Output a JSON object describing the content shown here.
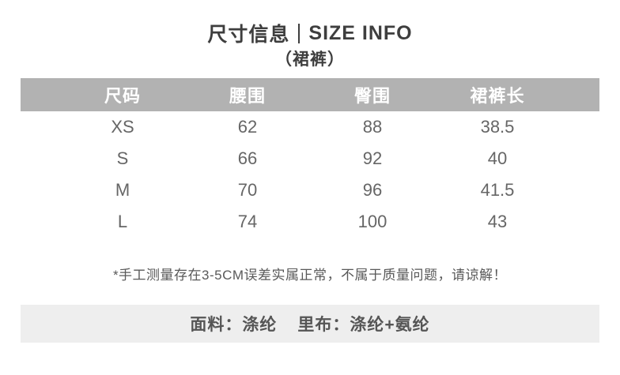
{
  "header": {
    "title_cn": "尺寸信息",
    "title_en": "SIZE INFO",
    "subtitle": "（裙裤）"
  },
  "table": {
    "columns": [
      "尺码",
      "腰围",
      "臀围",
      "裙裤长"
    ],
    "rows": [
      [
        "XS",
        "62",
        "88",
        "38.5"
      ],
      [
        "S",
        "66",
        "92",
        "40"
      ],
      [
        "M",
        "70",
        "96",
        "41.5"
      ],
      [
        "L",
        "74",
        "100",
        "43"
      ]
    ]
  },
  "note": "*手工测量存在3-5CM误差实属正常，不属于质量问题，请谅解！",
  "fabric": {
    "shell": "面料：涤纶",
    "lining": "里布：涤纶+氨纶"
  },
  "colors": {
    "header_bg": "#b2b2b2",
    "header_text": "#ffffff",
    "body_text": "#666666",
    "strip_bg": "#eeeeee",
    "note_text": "#595959",
    "title_text": "#3e3e3e"
  }
}
